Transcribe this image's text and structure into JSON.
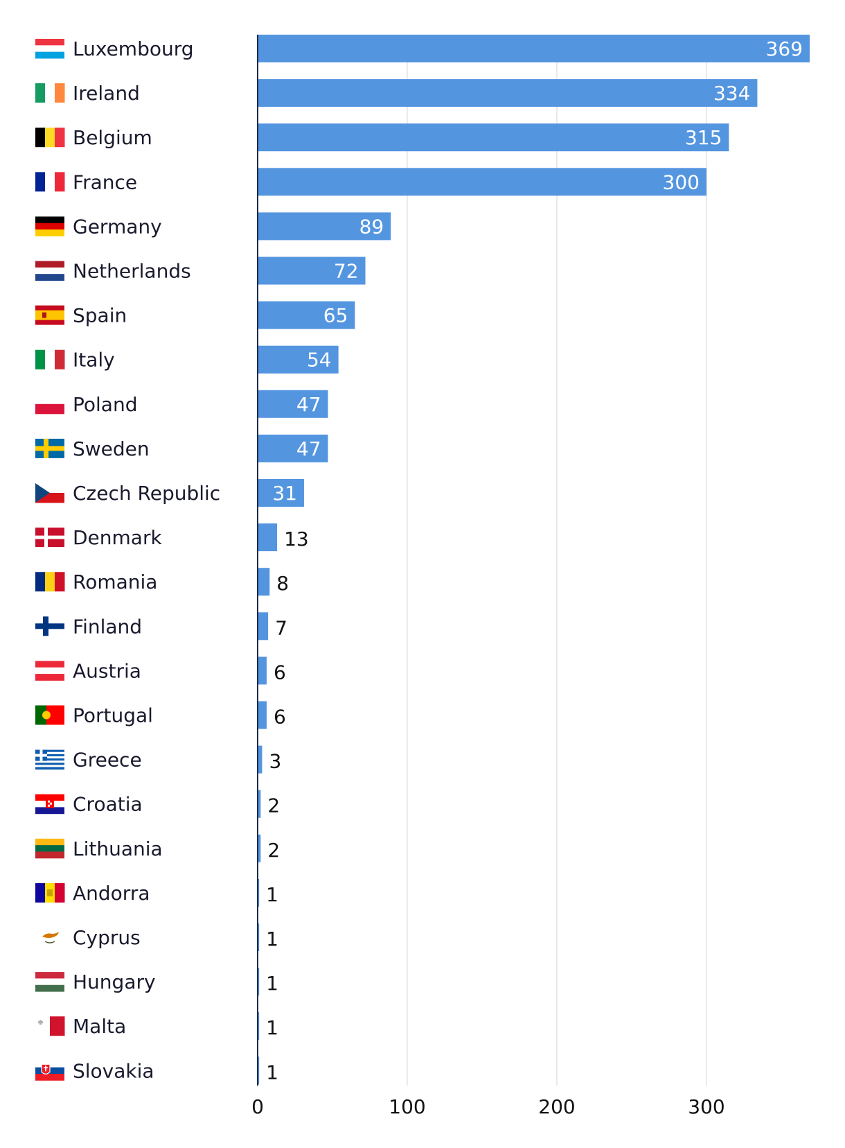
{
  "chart_data": {
    "type": "bar",
    "orientation": "horizontal",
    "title": "",
    "xlabel": "",
    "ylabel": "",
    "categories": [
      "Luxembourg",
      "Ireland",
      "Belgium",
      "France",
      "Germany",
      "Netherlands",
      "Spain",
      "Italy",
      "Poland",
      "Sweden",
      "Czech Republic",
      "Denmark",
      "Romania",
      "Finland",
      "Austria",
      "Portugal",
      "Greece",
      "Croatia",
      "Lithuania",
      "Andorra",
      "Cyprus",
      "Hungary",
      "Malta",
      "Slovakia"
    ],
    "values": [
      369,
      334,
      315,
      300,
      89,
      72,
      65,
      54,
      47,
      47,
      31,
      13,
      8,
      7,
      6,
      6,
      3,
      2,
      2,
      1,
      1,
      1,
      1,
      1
    ],
    "xlim": [
      0,
      369
    ],
    "xticks": [
      "0",
      "100",
      "200",
      "300"
    ],
    "grid": true,
    "bar_color": "#5495e0",
    "axis_color": "#1a2a4a",
    "grid_color": "#e3e3e3",
    "flag_icons": [
      "luxembourg-flag-icon",
      "ireland-flag-icon",
      "belgium-flag-icon",
      "france-flag-icon",
      "germany-flag-icon",
      "netherlands-flag-icon",
      "spain-flag-icon",
      "italy-flag-icon",
      "poland-flag-icon",
      "sweden-flag-icon",
      "czech-republic-flag-icon",
      "denmark-flag-icon",
      "romania-flag-icon",
      "finland-flag-icon",
      "austria-flag-icon",
      "portugal-flag-icon",
      "greece-flag-icon",
      "croatia-flag-icon",
      "lithuania-flag-icon",
      "andorra-flag-icon",
      "cyprus-flag-icon",
      "hungary-flag-icon",
      "malta-flag-icon",
      "slovakia-flag-icon"
    ]
  }
}
